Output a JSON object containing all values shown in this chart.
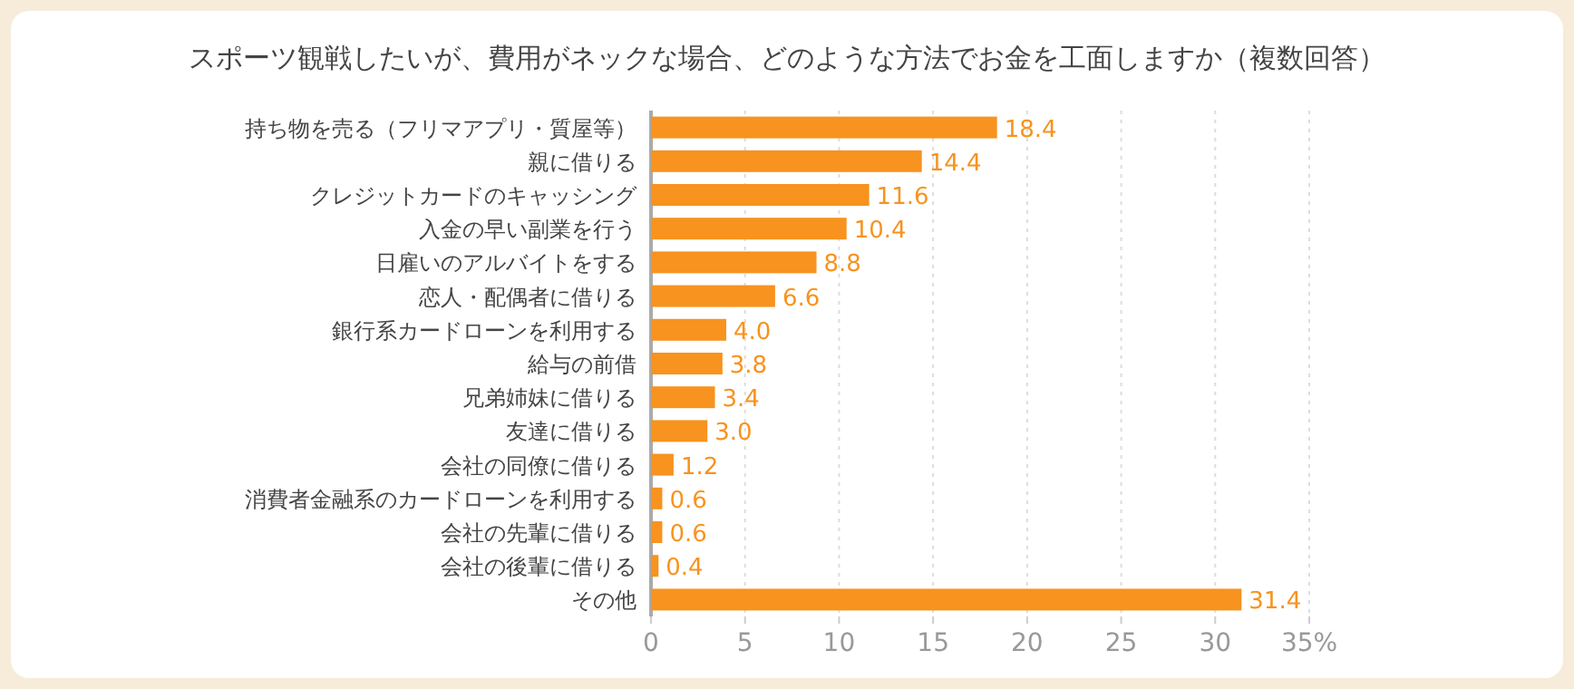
{
  "chart_data": {
    "type": "bar",
    "orientation": "horizontal",
    "title": "スポーツ観戦したいが、費用がネックな場合、どのような方法でお金を工面しますか（複数回答）",
    "categories": [
      "持ち物を売る（フリマアプリ・質屋等）",
      "親に借りる",
      "クレジットカードのキャッシング",
      "入金の早い副業を行う",
      "日雇いのアルバイトをする",
      "恋人・配偶者に借りる",
      "銀行系カードローンを利用する",
      "給与の前借",
      "兄弟姉妹に借りる",
      "友達に借りる",
      "会社の同僚に借りる",
      "消費者金融系のカードローンを利用する",
      "会社の先輩に借りる",
      "会社の後輩に借りる",
      "その他"
    ],
    "values": [
      18.4,
      14.4,
      11.6,
      10.4,
      8.8,
      6.6,
      4.0,
      3.8,
      3.4,
      3.0,
      1.2,
      0.6,
      0.6,
      0.4,
      31.4
    ],
    "value_labels": [
      "18.4",
      "14.4",
      "11.6",
      "10.4",
      "8.8",
      "6.6",
      "4.0",
      "3.8",
      "3.4",
      "3.0",
      "1.2",
      "0.6",
      "0.6",
      "0.4",
      "31.4"
    ],
    "color": "#f7931e",
    "xlim": [
      0,
      35
    ],
    "xticks": [
      0,
      5,
      10,
      15,
      20,
      25,
      30,
      {
        "value": 35,
        "label": "35%"
      }
    ],
    "grid": "x"
  }
}
